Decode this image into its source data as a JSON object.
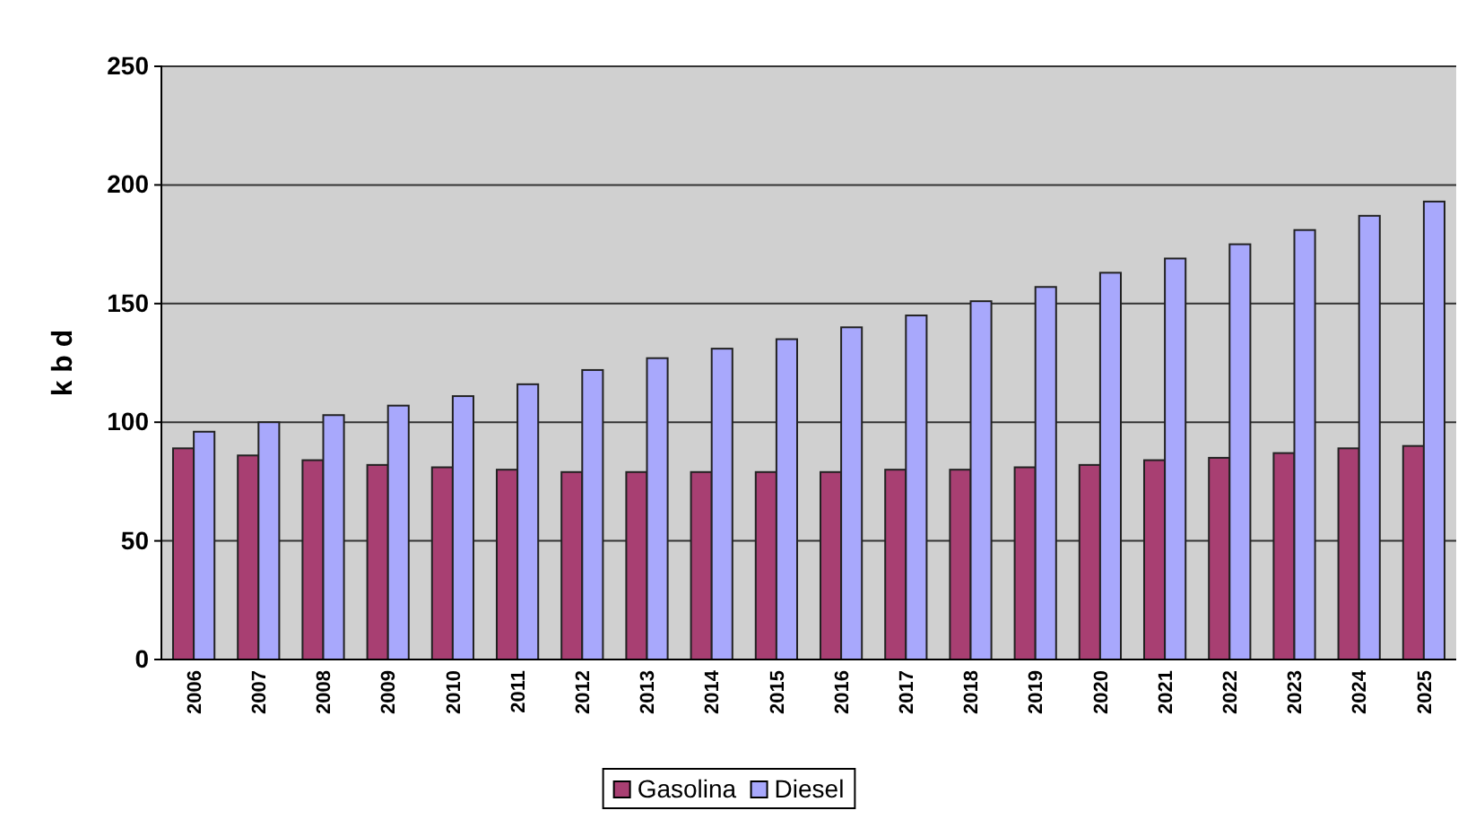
{
  "chart_data": {
    "type": "bar",
    "ylabel": "k b d",
    "categories": [
      "2006",
      "2007",
      "2008",
      "2009",
      "2010",
      "2011",
      "2012",
      "2013",
      "2014",
      "2015",
      "2016",
      "2017",
      "2018",
      "2019",
      "2020",
      "2021",
      "2022",
      "2023",
      "2024",
      "2025"
    ],
    "series": [
      {
        "name": "Gasolina",
        "color": "#a83f72",
        "values": [
          89,
          86,
          84,
          82,
          81,
          80,
          79,
          79,
          79,
          79,
          79,
          80,
          80,
          81,
          82,
          84,
          85,
          87,
          89,
          90
        ]
      },
      {
        "name": "Diesel",
        "color": "#a8a8fc",
        "values": [
          96,
          100,
          103,
          107,
          111,
          116,
          122,
          127,
          131,
          135,
          140,
          145,
          151,
          157,
          163,
          169,
          175,
          181,
          187,
          193
        ]
      }
    ],
    "ylim": [
      0,
      250
    ],
    "yticks": [
      0,
      50,
      100,
      150,
      200,
      250
    ],
    "grid": "y",
    "legend": "bottom"
  }
}
